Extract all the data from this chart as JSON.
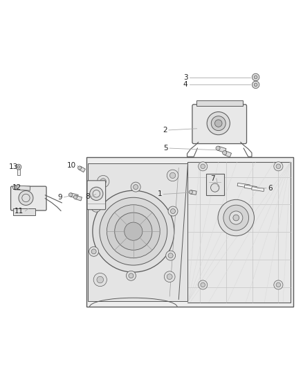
{
  "bg_color": "#ffffff",
  "line_color": "#5a5a5a",
  "light_line": "#888888",
  "leader_color": "#aaaaaa",
  "label_color": "#222222",
  "fill_light": "#f2f2f2",
  "fill_mid": "#e0e0e0",
  "fill_dark": "#cccccc",
  "fig_width": 4.38,
  "fig_height": 5.33,
  "dpi": 100,
  "parts_labels": {
    "1": [
      0.548,
      0.468,
      0.575,
      0.468
    ],
    "2": [
      0.562,
      0.248,
      0.61,
      0.268
    ],
    "3": [
      0.63,
      0.148,
      0.75,
      0.148
    ],
    "4": [
      0.63,
      0.17,
      0.75,
      0.17
    ],
    "5": [
      0.57,
      0.33,
      0.635,
      0.335
    ],
    "6": [
      0.88,
      0.488,
      0.855,
      0.475
    ],
    "7": [
      0.72,
      0.52,
      0.74,
      0.49
    ],
    "8": [
      0.302,
      0.465,
      0.318,
      0.475
    ],
    "9": [
      0.212,
      0.462,
      0.228,
      0.466
    ],
    "10": [
      0.258,
      0.565,
      0.265,
      0.55
    ],
    "11": [
      0.088,
      0.418,
      0.1,
      0.428
    ],
    "12": [
      0.08,
      0.495,
      0.095,
      0.488
    ],
    "13": [
      0.068,
      0.56,
      0.075,
      0.553
    ]
  }
}
